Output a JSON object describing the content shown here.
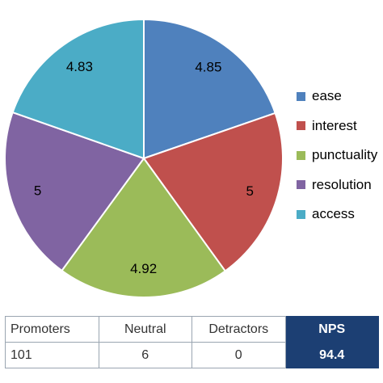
{
  "chart_data": {
    "type": "pie",
    "title": "",
    "slices": [
      {
        "name": "ease",
        "value": 4.85,
        "label": "4.85",
        "color": "#4f81bd"
      },
      {
        "name": "interest",
        "value": 5,
        "label": "5",
        "color": "#c0504d"
      },
      {
        "name": "punctuality",
        "value": 4.92,
        "label": "4.92",
        "color": "#9bbb59"
      },
      {
        "name": "resolution",
        "value": 5,
        "label": "5",
        "color": "#8064a2"
      },
      {
        "name": "access",
        "value": 4.83,
        "label": "4.83",
        "color": "#4bacc6"
      }
    ],
    "start_angle_deg": 0,
    "direction": "clockwise",
    "legend_position": "right"
  },
  "table": {
    "headers": [
      "Promoters",
      "Neutral",
      "Detractors",
      "NPS"
    ],
    "values": [
      "101",
      "6",
      "0",
      "94.4"
    ]
  },
  "colors": {
    "nps_highlight": "#1c3f73",
    "table_border": "#9aa5b1"
  }
}
